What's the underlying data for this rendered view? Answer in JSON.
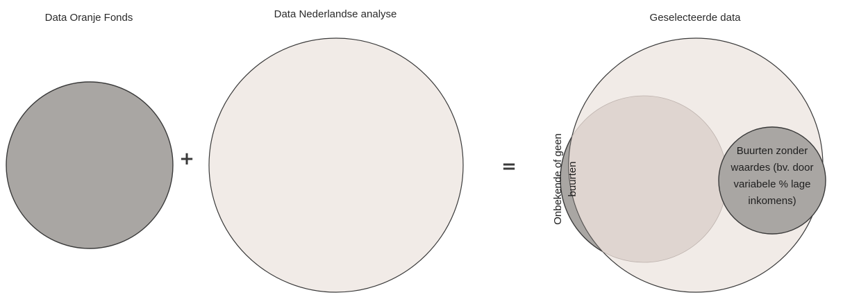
{
  "titles": {
    "oranje_fonds": "Data Oranje Fonds",
    "nederlandse_analyse": "Data Nederlandse analyse",
    "geselecteerde": "Geselecteerde data"
  },
  "operators": {
    "plus": "+",
    "equals": "="
  },
  "labels": {
    "onbekende_line1": "Onbekende of geen",
    "onbekende_line2": "buurten",
    "buurten_zonder": [
      "Buurten zonder",
      "waardes (bv. door",
      "variabele % lage",
      "inkomens)"
    ]
  },
  "colors": {
    "dark_fill": "#a9a6a3",
    "light_fill": "#f1ebe7",
    "overlap_fill": "#dfd4cf",
    "stroke": "#3a3a3a",
    "background": "#ffffff"
  }
}
